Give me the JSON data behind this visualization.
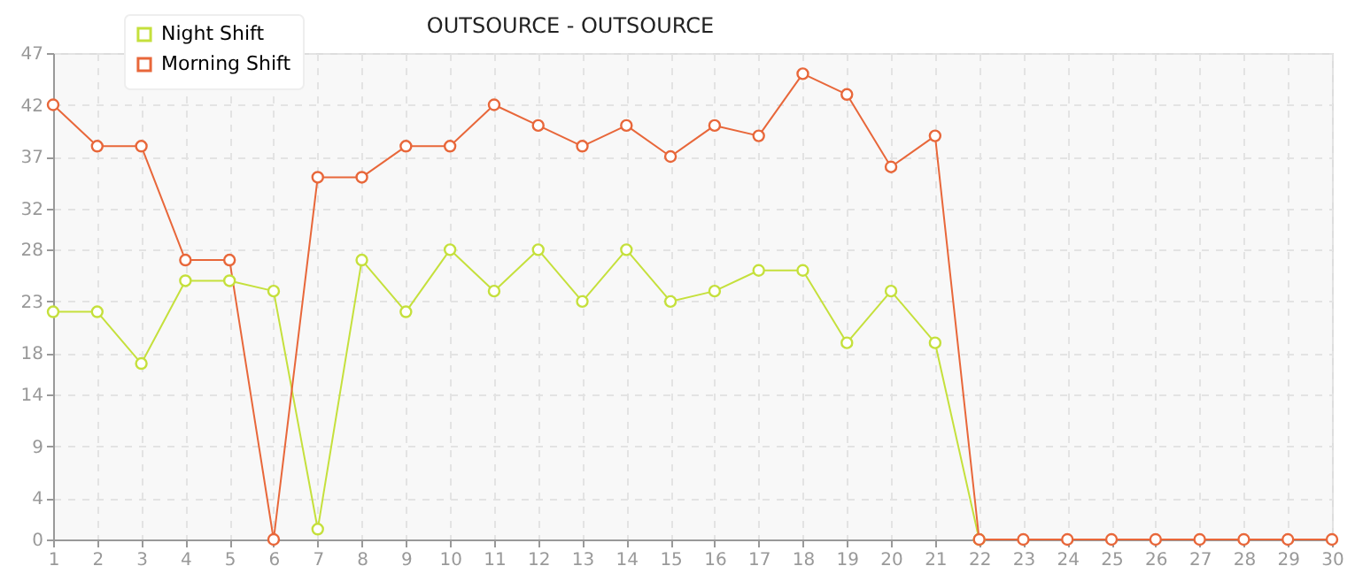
{
  "chart_data": {
    "type": "line",
    "title": "OUTSOURCE - OUTSOURCE",
    "x": [
      1,
      2,
      3,
      4,
      5,
      6,
      7,
      8,
      9,
      10,
      11,
      12,
      13,
      14,
      15,
      16,
      17,
      18,
      19,
      20,
      21,
      22,
      23,
      24,
      25,
      26,
      27,
      28,
      29,
      30
    ],
    "series": [
      {
        "name": "Night Shift",
        "color": "#c5e03c",
        "values": [
          22,
          22,
          17,
          25,
          25,
          24,
          1,
          27,
          22,
          28,
          24,
          28,
          23,
          28,
          23,
          24,
          26,
          26,
          19,
          24,
          19,
          0,
          null,
          null,
          null,
          null,
          null,
          null,
          null,
          null
        ]
      },
      {
        "name": "Morning Shift",
        "color": "#e8673a",
        "values": [
          42,
          38,
          38,
          27,
          27,
          0,
          35,
          35,
          38,
          38,
          42,
          40,
          38,
          40,
          37,
          40,
          39,
          45,
          43,
          36,
          39,
          0,
          0,
          0,
          0,
          0,
          0,
          0,
          0,
          0
        ]
      }
    ],
    "xlim": [
      1,
      30
    ],
    "xticks": [
      1,
      2,
      3,
      4,
      5,
      6,
      7,
      8,
      9,
      10,
      11,
      12,
      13,
      14,
      15,
      16,
      17,
      18,
      19,
      20,
      21,
      22,
      23,
      24,
      25,
      26,
      27,
      28,
      29,
      30
    ],
    "ylim": [
      0,
      47
    ],
    "yticks": [
      0,
      4,
      9,
      14,
      18,
      23,
      28,
      32,
      37,
      42,
      47
    ],
    "grid": true,
    "legend": "top left",
    "marker": "circle",
    "line_style": "solid"
  }
}
